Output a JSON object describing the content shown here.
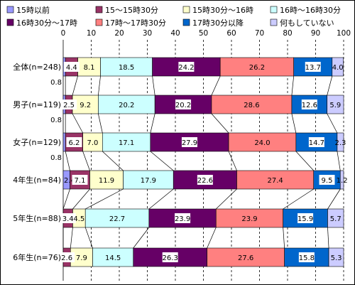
{
  "chart_data": {
    "type": "bar",
    "orientation": "horizontal",
    "stacked": true,
    "xlim": [
      0,
      100
    ],
    "x_ticks": [
      "0",
      "10",
      "20",
      "30",
      "40",
      "50",
      "60",
      "70",
      "80",
      "90",
      "100"
    ],
    "grid": "vertical dashed",
    "legend_position": "top",
    "categories": [
      "全体(n=248)",
      "男子(n=119)",
      "女子(n=129)",
      "4年生(n=84)",
      "5年生(n=88)",
      "6年生(n=76)"
    ],
    "series": [
      {
        "name": "15時以前",
        "color": "#9999FF",
        "values": [
          0.8,
          0.8,
          0.8,
          2.4,
          0,
          0
        ],
        "labels": [
          "0.8",
          "0.8",
          "0.8",
          "2.4",
          "",
          ""
        ]
      },
      {
        "name": "15～15時30分",
        "color": "#993366",
        "values": [
          4.4,
          2.5,
          6.2,
          7.1,
          3.4,
          2.6
        ],
        "labels": [
          "4.4",
          "2.5",
          "6.2",
          "7.1",
          "3.4",
          "2.6"
        ]
      },
      {
        "name": "15時30分～16時",
        "color": "#FFFFCC",
        "values": [
          8.1,
          9.2,
          7.0,
          11.9,
          4.5,
          7.9
        ],
        "labels": [
          "8.1",
          "9.2",
          "7.0",
          "11.9",
          "4.5",
          "7.9"
        ]
      },
      {
        "name": "16時～16時30分",
        "color": "#CCFFFF",
        "values": [
          18.5,
          20.2,
          17.1,
          17.9,
          22.7,
          14.5
        ],
        "labels": [
          "18.5",
          "20.2",
          "17.1",
          "17.9",
          "22.7",
          "14.5"
        ]
      },
      {
        "name": "16時30分～17時",
        "color": "#660066",
        "values": [
          24.2,
          20.2,
          27.9,
          22.6,
          23.9,
          26.3
        ],
        "labels": [
          "24.2",
          "20.2",
          "27.9",
          "22.6",
          "23.9",
          "26.3"
        ]
      },
      {
        "name": "17時～17時30分",
        "color": "#FF8080",
        "values": [
          26.2,
          28.6,
          24.0,
          27.4,
          23.9,
          27.6
        ],
        "labels": [
          "26.2",
          "28.6",
          "24.0",
          "27.4",
          "23.9",
          "27.6"
        ]
      },
      {
        "name": "17時30分以降",
        "color": "#0066CC",
        "values": [
          13.7,
          12.6,
          14.7,
          9.5,
          15.9,
          15.8
        ],
        "labels": [
          "13.7",
          "12.6",
          "14.7",
          "9.5",
          "15.9",
          "15.8"
        ]
      },
      {
        "name": "何もしていない",
        "color": "#CCCCFF",
        "values": [
          4.0,
          5.9,
          2.3,
          1.2,
          5.7,
          5.3
        ],
        "labels": [
          "4.0",
          "5.9",
          "2.3",
          "1.2",
          "5.7",
          "5.3"
        ]
      }
    ]
  }
}
